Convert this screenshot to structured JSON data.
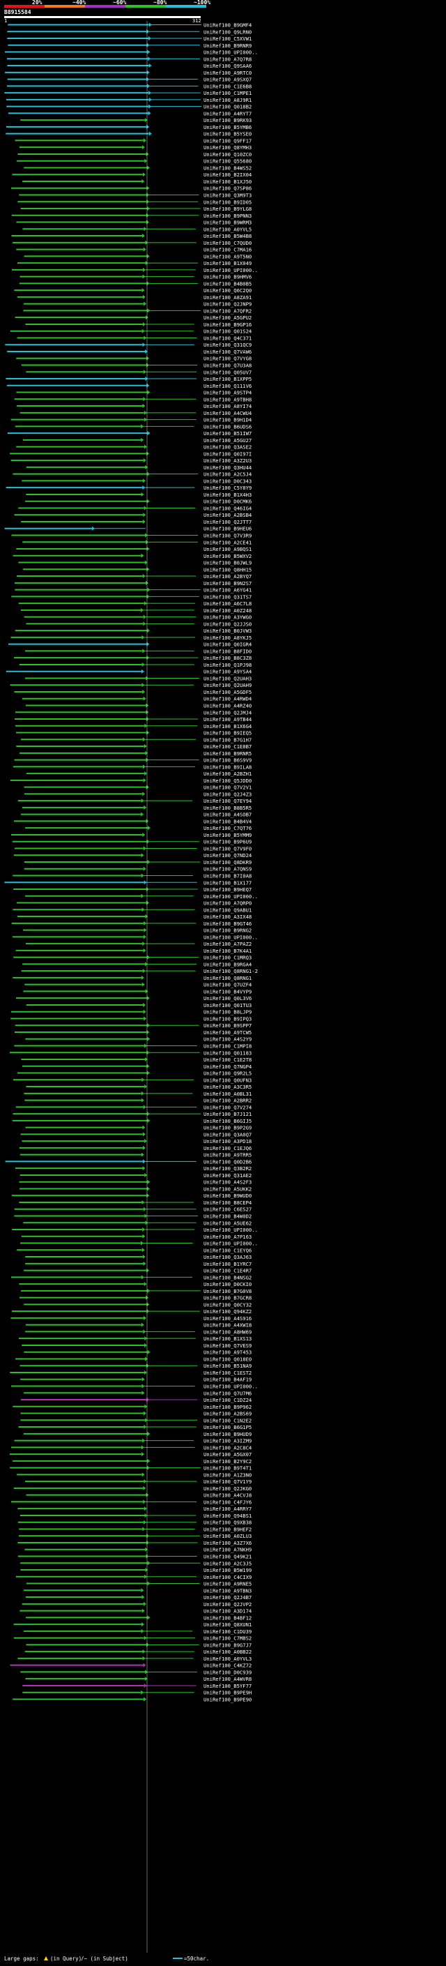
{
  "header": {
    "colorbar": [
      {
        "label": "20%",
        "color": "#e8101a"
      },
      {
        "label": "~40%",
        "color": "#f07a1e"
      },
      {
        "label": "~60%",
        "color": "#a32fc4"
      },
      {
        "label": "~80%",
        "color": "#2dc028"
      },
      {
        "label": "~100%",
        "color": "#22c0d8"
      }
    ],
    "query_id": "B8915584",
    "scale_start": "1",
    "scale_end": "312",
    "query_length": 312
  },
  "hits": [
    {
      "id": "UniRef100_B9GMF4",
      "color": "cyan"
    },
    {
      "id": "UniRef100_Q9LRN0",
      "color": "cyan"
    },
    {
      "id": "UniRef100_C5XVW1",
      "color": "cyan"
    },
    {
      "id": "UniRef100_B9RNR9",
      "color": "cyan"
    },
    {
      "id": "UniRef100_UPI000..",
      "color": "cyan"
    },
    {
      "id": "UniRef100_A7Q7R8",
      "color": "cyan"
    },
    {
      "id": "UniRef100_Q9SAA6",
      "color": "cyan"
    },
    {
      "id": "UniRef100_A9RTC0",
      "color": "cyan"
    },
    {
      "id": "UniRef100_A9SXQ7",
      "color": "cyan"
    },
    {
      "id": "UniRef100_C1E6B8",
      "color": "cyan"
    },
    {
      "id": "UniRef100_C1MPE1",
      "color": "cyan"
    },
    {
      "id": "UniRef100_A8J9R1",
      "color": "cyan"
    },
    {
      "id": "UniRef100_Q018B2",
      "color": "cyan"
    },
    {
      "id": "UniRef100_A4RYT7",
      "color": "cyan"
    },
    {
      "id": "UniRef100_B9RK93",
      "color": "green"
    },
    {
      "id": "UniRef100_B5YMB6",
      "color": "cyan"
    },
    {
      "id": "UniRef100_B5YSE0",
      "color": "cyan"
    },
    {
      "id": "UniRef100_Q9FF17",
      "color": "green"
    },
    {
      "id": "UniRef100_Q8YMH3",
      "color": "green"
    },
    {
      "id": "UniRef100_Q10ZC0",
      "color": "green"
    },
    {
      "id": "UniRef100_Q55680",
      "color": "green"
    },
    {
      "id": "UniRef100_B4WS52",
      "color": "green"
    },
    {
      "id": "UniRef100_B2IX04",
      "color": "green"
    },
    {
      "id": "UniRef100_B1XJ50",
      "color": "green"
    },
    {
      "id": "UniRef100_Q7SP86",
      "color": "green"
    },
    {
      "id": "UniRef100_Q3M9T3",
      "color": "green"
    },
    {
      "id": "UniRef100_B9ID05",
      "color": "green"
    },
    {
      "id": "UniRef100_B9YLG8",
      "color": "green"
    },
    {
      "id": "UniRef100_B9PNN3",
      "color": "green"
    },
    {
      "id": "UniRef100_B9WRM3",
      "color": "green"
    },
    {
      "id": "UniRef100_A0YVL5",
      "color": "green"
    },
    {
      "id": "UniRef100_B5W4B8",
      "color": "green"
    },
    {
      "id": "UniRef100_C7QUD0",
      "color": "green"
    },
    {
      "id": "UniRef100_C7MA16",
      "color": "green"
    },
    {
      "id": "UniRef100_A9T5N0",
      "color": "green"
    },
    {
      "id": "UniRef100_B1X049",
      "color": "green"
    },
    {
      "id": "UniRef100_UPI000..",
      "color": "green"
    },
    {
      "id": "UniRef100_B9HMV6",
      "color": "green"
    },
    {
      "id": "UniRef100_B4B0B5",
      "color": "green"
    },
    {
      "id": "UniRef100_Q6C2Q0",
      "color": "green"
    },
    {
      "id": "UniRef100_A8ZA91",
      "color": "green"
    },
    {
      "id": "UniRef100_Q2JNP9",
      "color": "green"
    },
    {
      "id": "UniRef100_A7QFR2",
      "color": "green"
    },
    {
      "id": "UniRef100_A5GPU2",
      "color": "green"
    },
    {
      "id": "UniRef100_B9GP16",
      "color": "green"
    },
    {
      "id": "UniRef100_Q01S24",
      "color": "green"
    },
    {
      "id": "UniRef100_Q4C371",
      "color": "green"
    },
    {
      "id": "UniRef100_Q31QC9",
      "color": "cyan"
    },
    {
      "id": "UniRef100_Q7VAW6",
      "color": "cyan"
    },
    {
      "id": "UniRef100_Q7VYG8",
      "color": "green"
    },
    {
      "id": "UniRef100_Q7U3A8",
      "color": "green"
    },
    {
      "id": "UniRef100_Q05UV7",
      "color": "green"
    },
    {
      "id": "UniRef100_B1XPP5",
      "color": "cyan"
    },
    {
      "id": "UniRef100_Q111V6",
      "color": "cyan"
    },
    {
      "id": "UniRef100_A9STP4",
      "color": "green"
    },
    {
      "id": "UniRef100_A9TBH8",
      "color": "green"
    },
    {
      "id": "UniRef100_A8YI74",
      "color": "green"
    },
    {
      "id": "UniRef100_A4CWU4",
      "color": "green"
    },
    {
      "id": "UniRef100_B9H1D4",
      "color": "green"
    },
    {
      "id": "UniRef100_B6UDS6",
      "color": "green"
    },
    {
      "id": "UniRef100_B51IW7",
      "color": "cyan"
    },
    {
      "id": "UniRef100_A5GU27",
      "color": "green"
    },
    {
      "id": "UniRef100_Q3ASE2",
      "color": "green"
    },
    {
      "id": "UniRef100_Q0I97I",
      "color": "green"
    },
    {
      "id": "UniRef100_A3Z2U3",
      "color": "green"
    },
    {
      "id": "UniRef100_Q3HU44",
      "color": "green"
    },
    {
      "id": "UniRef100_A2C5J4",
      "color": "green"
    },
    {
      "id": "UniRef100_D0C343",
      "color": "green"
    },
    {
      "id": "UniRef100_C5Y8Y9",
      "color": "cyan"
    },
    {
      "id": "UniRef100_B1X4H3",
      "color": "green"
    },
    {
      "id": "UniRef100_D0CMK6",
      "color": "green"
    },
    {
      "id": "UniRef100_Q46IG4",
      "color": "green"
    },
    {
      "id": "UniRef100_A2BSB4",
      "color": "green"
    },
    {
      "id": "UniRef100_Q2JTT7",
      "color": "green"
    },
    {
      "id": "UniRef100_B9HEU6",
      "color": "cyan"
    },
    {
      "id": "UniRef100_Q7V3R9",
      "color": "green"
    },
    {
      "id": "UniRef100_A2CE41",
      "color": "green"
    },
    {
      "id": "UniRef100_A9BQS1",
      "color": "green"
    },
    {
      "id": "UniRef100_B5WXV2",
      "color": "green"
    },
    {
      "id": "UniRef100_B0JWL9",
      "color": "green"
    },
    {
      "id": "UniRef100_Q8HH15",
      "color": "green"
    },
    {
      "id": "UniRef100_A2BYQ7",
      "color": "green"
    },
    {
      "id": "UniRef100_B9N2S7",
      "color": "green"
    },
    {
      "id": "UniRef100_A6YG41",
      "color": "green"
    },
    {
      "id": "UniRef100_Q31TS7",
      "color": "green"
    },
    {
      "id": "UniRef100_A6C7L8",
      "color": "green"
    },
    {
      "id": "UniRef100_A0Z248",
      "color": "green"
    },
    {
      "id": "UniRef100_A3YWG0",
      "color": "green"
    },
    {
      "id": "UniRef100_Q2JJS0",
      "color": "green"
    },
    {
      "id": "UniRef100_B0JVW3",
      "color": "green"
    },
    {
      "id": "UniRef100_A8YKJ5",
      "color": "green"
    },
    {
      "id": "UniRef100_Q0IGR4",
      "color": "cyan"
    },
    {
      "id": "UniRef100_B8FID0",
      "color": "green"
    },
    {
      "id": "UniRef100_B8C3Z8",
      "color": "green"
    },
    {
      "id": "UniRef100_Q1PJ98",
      "color": "green"
    },
    {
      "id": "UniRef100_A9YSA4",
      "color": "cyan"
    },
    {
      "id": "UniRef100_Q2UAH3",
      "color": "green"
    },
    {
      "id": "UniRef100_Q2UAH9",
      "color": "green"
    },
    {
      "id": "UniRef100_A5GDF5",
      "color": "green"
    },
    {
      "id": "UniRef100_A4RWD4",
      "color": "green"
    },
    {
      "id": "UniRef100_A4RZ40",
      "color": "green"
    },
    {
      "id": "UniRef100_Q2JMJ4",
      "color": "green"
    },
    {
      "id": "UniRef100_A9TB44",
      "color": "green"
    },
    {
      "id": "UniRef100_B1X6G4",
      "color": "green"
    },
    {
      "id": "UniRef100_B9IEQ5",
      "color": "green"
    },
    {
      "id": "UniRef100_B7G1H7",
      "color": "green"
    },
    {
      "id": "UniRef100_C1E8B7",
      "color": "green"
    },
    {
      "id": "UniRef100_B9RNR5",
      "color": "green"
    },
    {
      "id": "UniRef100_B6S9V9",
      "color": "green"
    },
    {
      "id": "UniRef100_B9ILA8",
      "color": "green"
    },
    {
      "id": "UniRef100_A2BZH1",
      "color": "green"
    },
    {
      "id": "UniRef100_Q5JDD0",
      "color": "green"
    },
    {
      "id": "UniRef100_Q7V2V1",
      "color": "green"
    },
    {
      "id": "UniRef100_Q2J4Z3",
      "color": "green"
    },
    {
      "id": "UniRef100_Q7EY94",
      "color": "green"
    },
    {
      "id": "UniRef100_B8B5R5",
      "color": "green"
    },
    {
      "id": "UniRef100_A4SOB7",
      "color": "green"
    },
    {
      "id": "UniRef100_B4B4V4",
      "color": "green"
    },
    {
      "id": "UniRef100_C7QT76",
      "color": "green"
    },
    {
      "id": "UniRef100_B5YMM9",
      "color": "green"
    },
    {
      "id": "UniRef100_B9P6U9",
      "color": "green"
    },
    {
      "id": "UniRef100_Q7V9F0",
      "color": "green"
    },
    {
      "id": "UniRef100_Q7ND24",
      "color": "green"
    },
    {
      "id": "UniRef100_Q8DKR9",
      "color": "green"
    },
    {
      "id": "UniRef100_A7QNS9",
      "color": "green"
    },
    {
      "id": "UniRef100_B7I0A8",
      "color": "green"
    },
    {
      "id": "UniRef100_B1X177",
      "color": "cyan"
    },
    {
      "id": "UniRef100_B9HEQ7",
      "color": "green"
    },
    {
      "id": "UniRef100_UPI000..",
      "color": "green"
    },
    {
      "id": "UniRef100_A7QRP0",
      "color": "green"
    },
    {
      "id": "UniRef100_Q9ABU1",
      "color": "green"
    },
    {
      "id": "UniRef100_A3IX48",
      "color": "green"
    },
    {
      "id": "UniRef100_B9GT46",
      "color": "green"
    },
    {
      "id": "UniRef100_B9RNG2",
      "color": "green"
    },
    {
      "id": "UniRef100_UPI000..",
      "color": "green"
    },
    {
      "id": "UniRef100_A7PAZ2",
      "color": "green"
    },
    {
      "id": "UniRef100_B7K4A1",
      "color": "green"
    },
    {
      "id": "UniRef100_C1MRQ3",
      "color": "green"
    },
    {
      "id": "UniRef100_B9RGA4",
      "color": "green"
    },
    {
      "id": "UniRef100_Q8RNG1-2",
      "color": "green"
    },
    {
      "id": "UniRef100_Q8RNG1",
      "color": "green"
    },
    {
      "id": "UniRef100_Q7UZF4",
      "color": "green"
    },
    {
      "id": "UniRef100_B4VYP9",
      "color": "green"
    },
    {
      "id": "UniRef100_Q0L3V6",
      "color": "green"
    },
    {
      "id": "UniRef100_Q01TU3",
      "color": "green"
    },
    {
      "id": "UniRef100_B8LJP9",
      "color": "green"
    },
    {
      "id": "UniRef100_B9IPQ3",
      "color": "green"
    },
    {
      "id": "UniRef100_B9SPP7",
      "color": "green"
    },
    {
      "id": "UniRef100_A9TCW5",
      "color": "green"
    },
    {
      "id": "UniRef100_A4S2Y9",
      "color": "green"
    },
    {
      "id": "UniRef100_C1MPI8",
      "color": "green"
    },
    {
      "id": "UniRef100_Q01183",
      "color": "green"
    },
    {
      "id": "UniRef100_C1E2T8",
      "color": "green"
    },
    {
      "id": "UniRef100_Q7NGP4",
      "color": "green"
    },
    {
      "id": "UniRef100_Q9R2L5",
      "color": "green"
    },
    {
      "id": "UniRef100_Q0UFN3",
      "color": "green"
    },
    {
      "id": "UniRef100_A3C3R5",
      "color": "green"
    },
    {
      "id": "UniRef100_A0BL31",
      "color": "green"
    },
    {
      "id": "UniRef100_A2BRR2",
      "color": "green"
    },
    {
      "id": "UniRef100_Q7V274",
      "color": "green"
    },
    {
      "id": "UniRef100_B7J121",
      "color": "green"
    },
    {
      "id": "UniRef100_B6GIJ5",
      "color": "green"
    },
    {
      "id": "UniRef100_B9P2G9",
      "color": "green"
    },
    {
      "id": "UniRef100_Q3A0Q7",
      "color": "green"
    },
    {
      "id": "UniRef100_A3PD18",
      "color": "green"
    },
    {
      "id": "UniRef100_C1EJQ6",
      "color": "green"
    },
    {
      "id": "UniRef100_A9TRR5",
      "color": "green"
    },
    {
      "id": "UniRef100_Q0D2B6",
      "color": "cyan"
    },
    {
      "id": "UniRef100_Q3B2R2",
      "color": "green"
    },
    {
      "id": "UniRef100_Q31AE2",
      "color": "green"
    },
    {
      "id": "UniRef100_A4S2F3",
      "color": "green"
    },
    {
      "id": "UniRef100_A5UKK2",
      "color": "green"
    },
    {
      "id": "UniRef100_B9WUD0",
      "color": "green"
    },
    {
      "id": "UniRef100_B8CEP4",
      "color": "green"
    },
    {
      "id": "UniRef100_C6ES27",
      "color": "green"
    },
    {
      "id": "UniRef100_B4W0D2",
      "color": "green"
    },
    {
      "id": "UniRef100_A5UE62",
      "color": "green"
    },
    {
      "id": "UniRef100_UPI000..",
      "color": "green"
    },
    {
      "id": "UniRef100_A7P163",
      "color": "green"
    },
    {
      "id": "UniRef100_UPI000..",
      "color": "green"
    },
    {
      "id": "UniRef100_C1EYQ6",
      "color": "green"
    },
    {
      "id": "UniRef100_Q3AJ63",
      "color": "green"
    },
    {
      "id": "UniRef100_B1YRC7",
      "color": "green"
    },
    {
      "id": "UniRef100_C1E4R7",
      "color": "green"
    },
    {
      "id": "UniRef100_B4NSG2",
      "color": "green"
    },
    {
      "id": "UniRef100_D0CKI0",
      "color": "green"
    },
    {
      "id": "UniRef100_B7G0V8",
      "color": "green"
    },
    {
      "id": "UniRef100_B7GCR8",
      "color": "green"
    },
    {
      "id": "UniRef100_Q0CY32",
      "color": "green"
    },
    {
      "id": "UniRef100_Q94KZ2",
      "color": "green"
    },
    {
      "id": "UniRef100_A4S916",
      "color": "green"
    },
    {
      "id": "UniRef100_A4XWI8",
      "color": "green"
    },
    {
      "id": "UniRef100_A8HW69",
      "color": "green"
    },
    {
      "id": "UniRef100_B1XS13",
      "color": "green"
    },
    {
      "id": "UniRef100_Q7VES9",
      "color": "green"
    },
    {
      "id": "UniRef100_A9T453",
      "color": "green"
    },
    {
      "id": "UniRef100_Q018E0",
      "color": "green"
    },
    {
      "id": "UniRef100_B51NA9",
      "color": "green"
    },
    {
      "id": "UniRef100_C1EST2",
      "color": "green"
    },
    {
      "id": "UniRef100_B4AF19",
      "color": "green"
    },
    {
      "id": "UniRef100_UPI000..",
      "color": "green"
    },
    {
      "id": "UniRef100_Q7U7M6",
      "color": "green"
    },
    {
      "id": "UniRef100_C1DZ24",
      "color": "magenta"
    },
    {
      "id": "UniRef100_B9P962",
      "color": "green"
    },
    {
      "id": "UniRef100_A2BS69",
      "color": "green"
    },
    {
      "id": "UniRef100_C1N2E2",
      "color": "green"
    },
    {
      "id": "UniRef100_B6G1P5",
      "color": "green"
    },
    {
      "id": "UniRef100_B9HUD9",
      "color": "green"
    },
    {
      "id": "UniRef100_A3IZM9",
      "color": "green"
    },
    {
      "id": "UniRef100_A2C8C4",
      "color": "green"
    },
    {
      "id": "UniRef100_A5GX07",
      "color": "green"
    },
    {
      "id": "UniRef100_B2Y9C2",
      "color": "green"
    },
    {
      "id": "UniRef100_B9T4T1",
      "color": "green"
    },
    {
      "id": "UniRef100_A1Z3N0",
      "color": "green"
    },
    {
      "id": "UniRef100_Q7V1Y9",
      "color": "green"
    },
    {
      "id": "UniRef100_Q2JKG0",
      "color": "green"
    },
    {
      "id": "UniRef100_A4CVJ8",
      "color": "green"
    },
    {
      "id": "UniRef100_C4FJY6",
      "color": "green"
    },
    {
      "id": "UniRef100_A4RRY7",
      "color": "green"
    },
    {
      "id": "UniRef100_Q94BS1",
      "color": "green"
    },
    {
      "id": "UniRef100_Q9XB38",
      "color": "green"
    },
    {
      "id": "UniRef100_B9HEF2",
      "color": "green"
    },
    {
      "id": "UniRef100_A0ZLU3",
      "color": "green"
    },
    {
      "id": "UniRef100_A3Z7X6",
      "color": "green"
    },
    {
      "id": "UniRef100_A7NKH9",
      "color": "green"
    },
    {
      "id": "UniRef100_Q49K21",
      "color": "green"
    },
    {
      "id": "UniRef100_A2C3J5",
      "color": "green"
    },
    {
      "id": "UniRef100_B5W199",
      "color": "green"
    },
    {
      "id": "UniRef100_C4CIX9",
      "color": "green"
    },
    {
      "id": "UniRef100_A9RNE5",
      "color": "green"
    },
    {
      "id": "UniRef100_A9TBN3",
      "color": "green"
    },
    {
      "id": "UniRef100_Q2J4B7",
      "color": "green"
    },
    {
      "id": "UniRef100_Q2JVP2",
      "color": "green"
    },
    {
      "id": "UniRef100_A3D174",
      "color": "green"
    },
    {
      "id": "UniRef100_B4BF12",
      "color": "green"
    },
    {
      "id": "UniRef100_Q8XUN1",
      "color": "green"
    },
    {
      "id": "UniRef100_C1DU39",
      "color": "green"
    },
    {
      "id": "UniRef100_C7MBS2",
      "color": "green"
    },
    {
      "id": "UniRef100_B9G7J7",
      "color": "green"
    },
    {
      "id": "UniRef100_A0BB22",
      "color": "green"
    },
    {
      "id": "UniRef100_A0YVL3",
      "color": "green"
    },
    {
      "id": "UniRef100_C4KZ72",
      "color": "magenta"
    },
    {
      "id": "UniRef100_D0C939",
      "color": "green"
    },
    {
      "id": "UniRef100_A4WVR8",
      "color": "green"
    },
    {
      "id": "UniRef100_B5YF77",
      "color": "magenta"
    },
    {
      "id": "UniRef100_B9PE9H",
      "color": "green"
    },
    {
      "id": "UniRef100_B9PE90",
      "color": "green"
    }
  ],
  "footer": {
    "large_gaps_label": "Large gaps:",
    "in_query_label": "(in Query)",
    "in_subject_label": "/~ (in Subject)",
    "scale_label": "=50char."
  },
  "colors": {
    "green": "#2dc028",
    "cyan": "#22c0d8",
    "magenta": "#b030b8",
    "red": "#e8101a",
    "orange": "#f07a1e",
    "purple": "#a32fc4",
    "query_bar": "#ffffff"
  }
}
